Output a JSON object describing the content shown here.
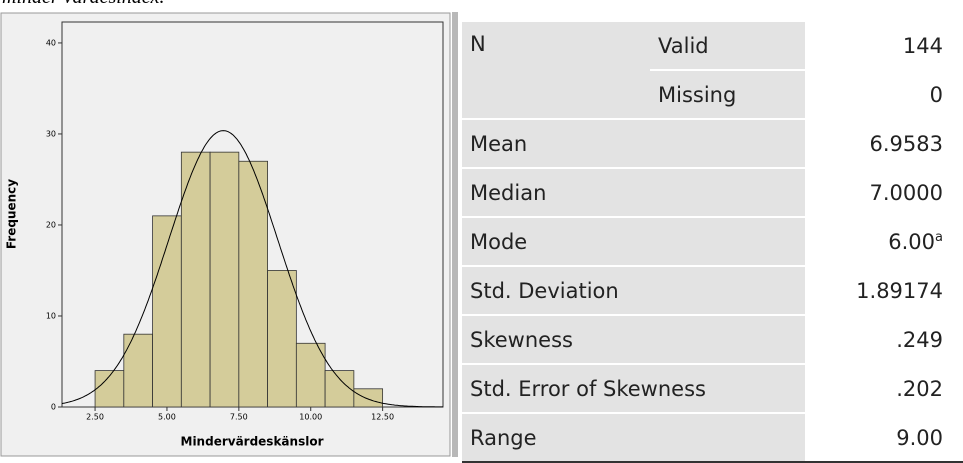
{
  "caption": "minder värdesindex.",
  "chart_data": {
    "type": "histogram",
    "xlabel": "Mindervärdeskänslor",
    "ylabel": "Frequency",
    "bins": [
      2.5,
      3.5,
      4.5,
      5.5,
      6.5,
      7.5,
      8.5,
      9.5,
      10.5,
      11.5,
      12.5
    ],
    "values": [
      4,
      8,
      21,
      28,
      28,
      27,
      15,
      7,
      4,
      2
    ],
    "color": "#d4cc9a",
    "xlim": [
      1.35,
      14.6
    ],
    "ylim": [
      0,
      42.3
    ],
    "xticks": [
      {
        "value": 2.5,
        "label": "2.50"
      },
      {
        "value": 5,
        "label": "5.00"
      },
      {
        "value": 7.5,
        "label": "7.50"
      },
      {
        "value": 10,
        "label": "10.00"
      },
      {
        "value": 12.5,
        "label": "12.50"
      }
    ],
    "yticks": [
      0,
      10,
      20,
      30,
      40
    ]
  },
  "table": {
    "rows": [
      [
        "N",
        "Valid",
        "144"
      ],
      [
        "Missing",
        "0"
      ],
      [
        "Mean",
        "6.9583"
      ],
      [
        "Median",
        "7.0000"
      ],
      [
        "Mode",
        "6.00",
        "a"
      ],
      [
        "Std. Deviation",
        "1.89174"
      ],
      [
        "Skewness",
        ".249"
      ],
      [
        "Std. Error of Skewness",
        ".202"
      ],
      [
        "Range",
        "9.00"
      ]
    ]
  }
}
